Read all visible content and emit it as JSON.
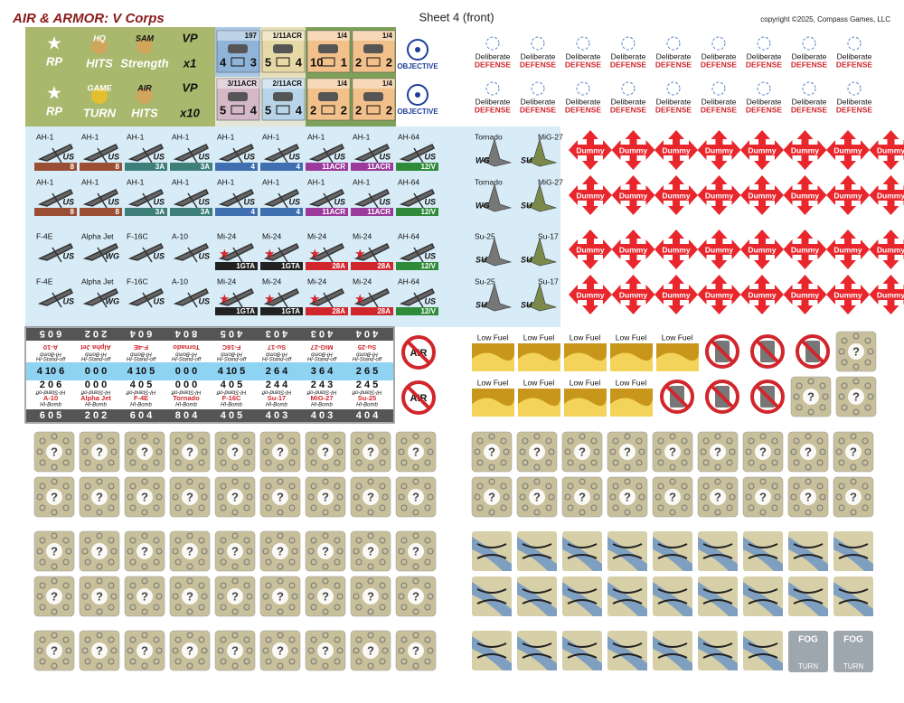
{
  "header": {
    "title": "AIR & ARMOR: V Corps",
    "sheet": "Sheet 4 (front)",
    "copyright": "copyright ©2025, Compass Games, LLC"
  },
  "markers": [
    {
      "lines": [
        "RP"
      ]
    },
    {
      "lines": [
        "HQ",
        "HITS"
      ]
    },
    {
      "lines": [
        "SAM",
        "Strength"
      ]
    },
    {
      "lines": [
        "VP",
        "x1"
      ]
    },
    {
      "lines": [
        "RP"
      ]
    },
    {
      "lines": [
        "GAME",
        "TURN"
      ]
    },
    {
      "lines": [
        "AIR",
        "HITS"
      ]
    },
    {
      "lines": [
        "VP",
        "x10"
      ]
    }
  ],
  "units": [
    {
      "id": "197",
      "a": "4",
      "b": "3",
      "color": "#8fb4d8"
    },
    {
      "id": "1/11ACR",
      "a": "5",
      "b": "4",
      "color": "#e6d9a6"
    },
    {
      "id": "1/4",
      "a": "10",
      "b": "1",
      "color": "#f2c08a"
    },
    {
      "id": "1/4",
      "a": "2",
      "b": "2",
      "color": "#f2c08a"
    },
    {
      "id": "3/11ACR",
      "a": "5",
      "b": "4",
      "color": "#d4b8c8"
    },
    {
      "id": "2/11ACR",
      "a": "5",
      "b": "4",
      "color": "#b8d4e8"
    },
    {
      "id": "1/4",
      "a": "2",
      "b": "2",
      "color": "#f2c08a"
    },
    {
      "id": "1/4",
      "a": "2",
      "b": "2",
      "color": "#f2c08a"
    }
  ],
  "objective": "OBJECTIVE",
  "defense": {
    "line1": "Deliberate",
    "line2": "DEFENSE"
  },
  "aircraft": [
    [
      {
        "name": "AH-1",
        "side": "US",
        "badge": "8",
        "color": "#9a4f35"
      },
      {
        "name": "AH-1",
        "side": "US",
        "badge": "8",
        "color": "#9a4f35"
      },
      {
        "name": "AH-1",
        "side": "US",
        "badge": "3A",
        "color": "#3f7f7a"
      },
      {
        "name": "AH-1",
        "side": "US",
        "badge": "3A",
        "color": "#3f7f7a"
      },
      {
        "name": "AH-1",
        "side": "US",
        "badge": "4",
        "color": "#3f6fb0"
      },
      {
        "name": "AH-1",
        "side": "US",
        "badge": "4",
        "color": "#3f6fb0"
      },
      {
        "name": "AH-1",
        "side": "US",
        "badge": "11ACR",
        "color": "#9b3a9b"
      },
      {
        "name": "AH-1",
        "side": "US",
        "badge": "11ACR",
        "color": "#9b3a9b"
      },
      {
        "name": "AH-64",
        "side": "US",
        "badge": "12/V",
        "color": "#2f8a3a"
      }
    ],
    [
      {
        "name": "AH-1",
        "side": "US",
        "badge": "8",
        "color": "#9a4f35"
      },
      {
        "name": "AH-1",
        "side": "US",
        "badge": "8",
        "color": "#9a4f35"
      },
      {
        "name": "AH-1",
        "side": "US",
        "badge": "3A",
        "color": "#3f7f7a"
      },
      {
        "name": "AH-1",
        "side": "US",
        "badge": "3A",
        "color": "#3f7f7a"
      },
      {
        "name": "AH-1",
        "side": "US",
        "badge": "4",
        "color": "#3f6fb0"
      },
      {
        "name": "AH-1",
        "side": "US",
        "badge": "4",
        "color": "#3f6fb0"
      },
      {
        "name": "AH-1",
        "side": "US",
        "badge": "11ACR",
        "color": "#9b3a9b"
      },
      {
        "name": "AH-1",
        "side": "US",
        "badge": "11ACR",
        "color": "#9b3a9b"
      },
      {
        "name": "AH-64",
        "side": "US",
        "badge": "12/V",
        "color": "#2f8a3a"
      }
    ],
    [
      {
        "name": "F-4E",
        "side": "US"
      },
      {
        "name": "Alpha Jet",
        "side": "WG"
      },
      {
        "name": "F-16C",
        "side": "US"
      },
      {
        "name": "A-10",
        "side": "US"
      },
      {
        "name": "Mi-24",
        "badge": "1GTA",
        "color": "#222222"
      },
      {
        "name": "Mi-24",
        "badge": "1GTA",
        "color": "#222222"
      },
      {
        "name": "Mi-24",
        "badge": "28A",
        "color": "#d0262c"
      },
      {
        "name": "Mi-24",
        "badge": "28A",
        "color": "#d0262c"
      },
      {
        "name": "AH-64",
        "side": "US",
        "badge": "12/V",
        "color": "#2f8a3a"
      }
    ],
    [
      {
        "name": "F-4E",
        "side": "US"
      },
      {
        "name": "Alpha Jet",
        "side": "WG"
      },
      {
        "name": "F-16C",
        "side": "US"
      },
      {
        "name": "A-10",
        "side": "US"
      },
      {
        "name": "Mi-24",
        "badge": "1GTA",
        "color": "#222222"
      },
      {
        "name": "Mi-24",
        "badge": "1GTA",
        "color": "#222222"
      },
      {
        "name": "Mi-24",
        "badge": "28A",
        "color": "#d0262c"
      },
      {
        "name": "Mi-24",
        "badge": "28A",
        "color": "#d0262c"
      },
      {
        "name": "AH-64",
        "side": "US",
        "badge": "12/V",
        "color": "#2f8a3a"
      }
    ]
  ],
  "air_side": [
    [
      {
        "name": "Tornado",
        "side": "WG"
      },
      {
        "name": "MiG-27",
        "side": "SU"
      }
    ],
    [
      {
        "name": "Tornado",
        "side": "WG"
      },
      {
        "name": "MiG-27",
        "side": "SU"
      }
    ],
    [
      {
        "name": "Su-25",
        "side": "SU"
      },
      {
        "name": "Su-17",
        "side": "SU"
      }
    ],
    [
      {
        "name": "Su-25",
        "side": "SU"
      },
      {
        "name": "Su-17",
        "side": "SU"
      }
    ]
  ],
  "dummy": "Dummy",
  "strip": {
    "modes": [
      "HI-Bomb",
      "HI-Stand-off"
    ],
    "columns": [
      {
        "name": "A-10",
        "grey": "6 0 5",
        "blue": "4 10 6",
        "white": "2 0 6"
      },
      {
        "name": "Alpha Jet",
        "grey": "2 0 2",
        "blue": "0 0 0",
        "white": "0 0 0"
      },
      {
        "name": "F-4E",
        "grey": "6 0 4",
        "blue": "4 10 5",
        "white": "4 0 5"
      },
      {
        "name": "Tornado",
        "grey": "8 0 4",
        "blue": "0 0 0",
        "white": "0 0 0"
      },
      {
        "name": "F-16C",
        "grey": "4 0 5",
        "blue": "4 10 5",
        "white": "4 0 5"
      },
      {
        "name": "Su-17",
        "grey": "4 0 3",
        "blue": "2 6 4",
        "white": "2 4 4"
      },
      {
        "name": "MiG-27",
        "grey": "4 0 3",
        "blue": "3 6 4",
        "white": "2 4 3"
      },
      {
        "name": "Su-25",
        "grey": "4 0 4",
        "blue": "2 6 5",
        "white": "2 4 5"
      }
    ]
  },
  "no_air": "AIR",
  "low_fuel": "Low Fuel",
  "fog": [
    "FOG",
    "TURN"
  ],
  "hidden": "?"
}
